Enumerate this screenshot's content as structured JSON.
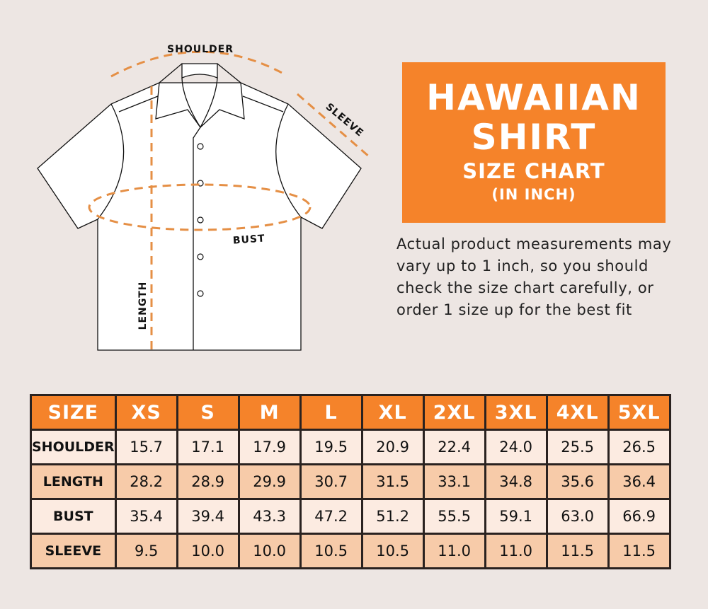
{
  "diagram": {
    "labels": {
      "shoulder": "SHOULDER",
      "sleeve": "SLEEVE",
      "bust": "BUST",
      "length": "LENGTH"
    },
    "colors": {
      "dash": "#e58f45",
      "outline": "#111111",
      "shirt_fill": "#ffffff"
    }
  },
  "title_box": {
    "line1": "HAWAIIAN",
    "line2": "SHIRT",
    "line3": "SIZE CHART",
    "line4": "(IN INCH)",
    "color": "#f5832a"
  },
  "description": "Actual product measurements may vary up to 1 inch, so you should check the size chart carefully, or order 1 size up for the best fit",
  "table": {
    "headers": [
      "SIZE",
      "XS",
      "S",
      "M",
      "L",
      "XL",
      "2XL",
      "3XL",
      "4XL",
      "5XL"
    ],
    "rows": [
      {
        "label": "SHOULDER",
        "values": [
          "15.7",
          "17.1",
          "17.9",
          "19.5",
          "20.9",
          "22.4",
          "24.0",
          "25.5",
          "26.5"
        ]
      },
      {
        "label": "LENGTH",
        "values": [
          "28.2",
          "28.9",
          "29.9",
          "30.7",
          "31.5",
          "33.1",
          "34.8",
          "35.6",
          "36.4"
        ]
      },
      {
        "label": "BUST",
        "values": [
          "35.4",
          "39.4",
          "43.3",
          "47.2",
          "51.2",
          "55.5",
          "59.1",
          "63.0",
          "66.9"
        ]
      },
      {
        "label": "SLEEVE",
        "values": [
          "9.5",
          "10.0",
          "10.0",
          "10.5",
          "10.5",
          "11.0",
          "11.0",
          "11.5",
          "11.5"
        ]
      }
    ]
  }
}
